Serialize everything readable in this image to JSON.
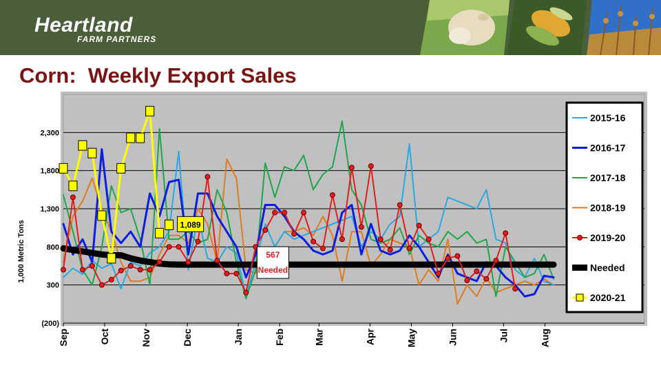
{
  "header": {
    "brand_name": "Heartland",
    "brand_sub": "FARM PARTNERS",
    "title": "Corn:  Weekly Export Sales",
    "colors": {
      "banner": "#4a5e3a",
      "title": "#7a1414"
    }
  },
  "chart_data": {
    "type": "line",
    "title": "Corn:  Weekly Export Sales",
    "ylabel": "1,000 Metric Tons",
    "xlabel": "",
    "ylim": [
      -200,
      2800
    ],
    "yticks": [
      -200,
      300,
      800,
      1300,
      1800,
      2300
    ],
    "ytick_labels": [
      "(200)",
      "300",
      "800",
      "1,300",
      "1,800",
      "2,300"
    ],
    "x_range": [
      0,
      52
    ],
    "months": [
      {
        "label": "Sep",
        "week": 0
      },
      {
        "label": "Oct",
        "week": 4.3
      },
      {
        "label": "Nov",
        "week": 8.6
      },
      {
        "label": "Dec",
        "week": 12.9
      },
      {
        "label": "Jan",
        "week": 18.2
      },
      {
        "label": "Feb",
        "week": 22.5
      },
      {
        "label": "Mar",
        "week": 26.6
      },
      {
        "label": "Apr",
        "week": 31.9
      },
      {
        "label": "May",
        "week": 36.2
      },
      {
        "label": "Jun",
        "week": 40.5
      },
      {
        "label": "Jul",
        "week": 45.8
      },
      {
        "label": "Aug",
        "week": 50.1
      }
    ],
    "grid": true,
    "legend_position": "right",
    "series": [
      {
        "name": "2015-16",
        "color": "#2aa8e0",
        "width": 2,
        "marker": "none",
        "values": [
          400,
          520,
          440,
          620,
          520,
          580,
          250,
          600,
          550,
          720,
          800,
          1000,
          2050,
          500,
          1200,
          650,
          600,
          800,
          720,
          150,
          600,
          1100,
          800,
          1000,
          900,
          950,
          1000,
          1050,
          1100,
          1150,
          1200,
          800,
          1000,
          900,
          1100,
          1200,
          2150,
          800,
          900,
          1000,
          1450,
          1400,
          1350,
          1300,
          1550,
          900,
          850,
          500,
          400,
          650,
          350,
          300
        ]
      },
      {
        "name": "2016-17",
        "color": "#0b1ee0",
        "width": 3,
        "marker": "none",
        "values": [
          1100,
          700,
          900,
          600,
          2080,
          1000,
          850,
          1000,
          800,
          1500,
          1200,
          1650,
          1680,
          700,
          1500,
          1500,
          1200,
          1000,
          800,
          400,
          700,
          1350,
          1350,
          1200,
          1000,
          900,
          750,
          700,
          750,
          1250,
          1350,
          700,
          1100,
          750,
          700,
          750,
          950,
          800,
          600,
          400,
          700,
          450,
          400,
          350,
          600,
          550,
          400,
          300,
          150,
          180,
          420,
          400
        ]
      },
      {
        "name": "2017-18",
        "color": "#1ea64a",
        "width": 2,
        "marker": "none",
        "values": [
          1480,
          1000,
          500,
          300,
          800,
          1600,
          1250,
          1300,
          900,
          300,
          2350,
          900,
          900,
          1000,
          850,
          900,
          1550,
          1250,
          600,
          120,
          500,
          1900,
          1450,
          1850,
          1800,
          2000,
          1550,
          1750,
          1850,
          2450,
          1550,
          1350,
          900,
          850,
          900,
          1050,
          700,
          950,
          850,
          800,
          1000,
          900,
          1000,
          850,
          900,
          150,
          800,
          600,
          400,
          450,
          700,
          380
        ]
      },
      {
        "name": "2018-19",
        "color": "#e07a1e",
        "width": 2,
        "marker": "none",
        "values": [
          600,
          1200,
          1400,
          1700,
          1300,
          1000,
          600,
          350,
          350,
          400,
          700,
          950,
          950,
          850,
          1300,
          1100,
          600,
          1950,
          1700,
          500,
          450,
          800,
          800,
          1000,
          1000,
          1050,
          950,
          1200,
          950,
          350,
          1000,
          1000,
          550,
          700,
          900,
          850,
          800,
          300,
          500,
          350,
          900,
          50,
          300,
          150,
          400,
          200,
          250,
          300,
          350,
          300,
          380,
          300
        ]
      },
      {
        "name": "2019-20",
        "color": "#e01e1e",
        "width": 2,
        "marker": "circle",
        "values": [
          500,
          1450,
          500,
          550,
          300,
          370,
          490,
          550,
          500,
          500,
          600,
          800,
          800,
          600,
          870,
          1720,
          620,
          450,
          450,
          200,
          800,
          1020,
          1250,
          1250,
          970,
          1250,
          870,
          780,
          1480,
          900,
          1840,
          1060,
          1860,
          900,
          760,
          1350,
          780,
          1080,
          900,
          450,
          650,
          680,
          360,
          480,
          380,
          620,
          980,
          250
        ]
      },
      {
        "name": "Needed",
        "color": "#000000",
        "width": 9,
        "marker": "none",
        "values": [
          780,
          760,
          740,
          720,
          700,
          690,
          690,
          650,
          620,
          600,
          580,
          570,
          567,
          567,
          567,
          567,
          567,
          567,
          567,
          567,
          567,
          567,
          567,
          567,
          567,
          567,
          567,
          567,
          567,
          567,
          567,
          567,
          567,
          567,
          567,
          567,
          567,
          567,
          567,
          567,
          567,
          567,
          567,
          567,
          567,
          567,
          567,
          567,
          567,
          567,
          567,
          567
        ]
      },
      {
        "name": "2020-21",
        "color": "#ffff00",
        "width": 3,
        "marker": "square",
        "values": [
          1830,
          1600,
          2130,
          2030,
          1210,
          650,
          1830,
          2230,
          2230,
          2580,
          980,
          1089
        ]
      }
    ],
    "annotations": [
      {
        "text": "1,089",
        "series": "2020-21",
        "week": 11
      },
      {
        "text": "567",
        "text2": "Needed",
        "series": "Needed",
        "week": 21.8,
        "value": 567
      }
    ]
  }
}
